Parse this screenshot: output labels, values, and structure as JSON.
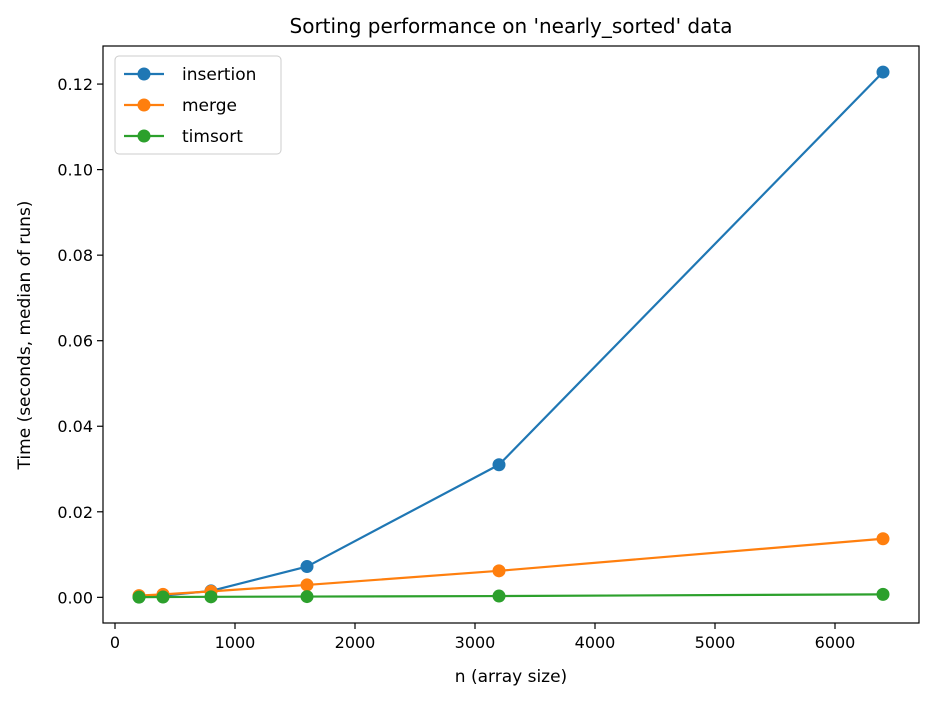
{
  "chart_data": {
    "type": "line",
    "title": "Sorting performance on 'nearly_sorted' data",
    "xlabel": "n (array size)",
    "ylabel": "Time (seconds, median of runs)",
    "x": [
      200,
      400,
      800,
      1600,
      3200,
      6400
    ],
    "xlim": [
      -100,
      6700
    ],
    "ylim": [
      -0.006,
      0.1289
    ],
    "xticks": [
      0,
      1000,
      2000,
      3000,
      4000,
      5000,
      6000
    ],
    "yticks": [
      0.0,
      0.02,
      0.04,
      0.06,
      0.08,
      0.1,
      0.12
    ],
    "ytick_labels": [
      "0.00",
      "0.02",
      "0.04",
      "0.06",
      "0.08",
      "0.10",
      "0.12"
    ],
    "grid": false,
    "legend_position": "top-left",
    "series": [
      {
        "name": "insertion",
        "color": "#1f77b4",
        "marker": "circle",
        "values": [
          0.0001,
          0.0004,
          0.0015,
          0.0072,
          0.031,
          0.1228
        ]
      },
      {
        "name": "merge",
        "color": "#ff7f0e",
        "marker": "circle",
        "values": [
          0.0004,
          0.0007,
          0.0014,
          0.0029,
          0.0062,
          0.0137
        ]
      },
      {
        "name": "timsort",
        "color": "#2ca02c",
        "marker": "circle",
        "values": [
          5e-05,
          8e-05,
          0.00012,
          0.00018,
          0.0003,
          0.0007
        ]
      }
    ]
  }
}
